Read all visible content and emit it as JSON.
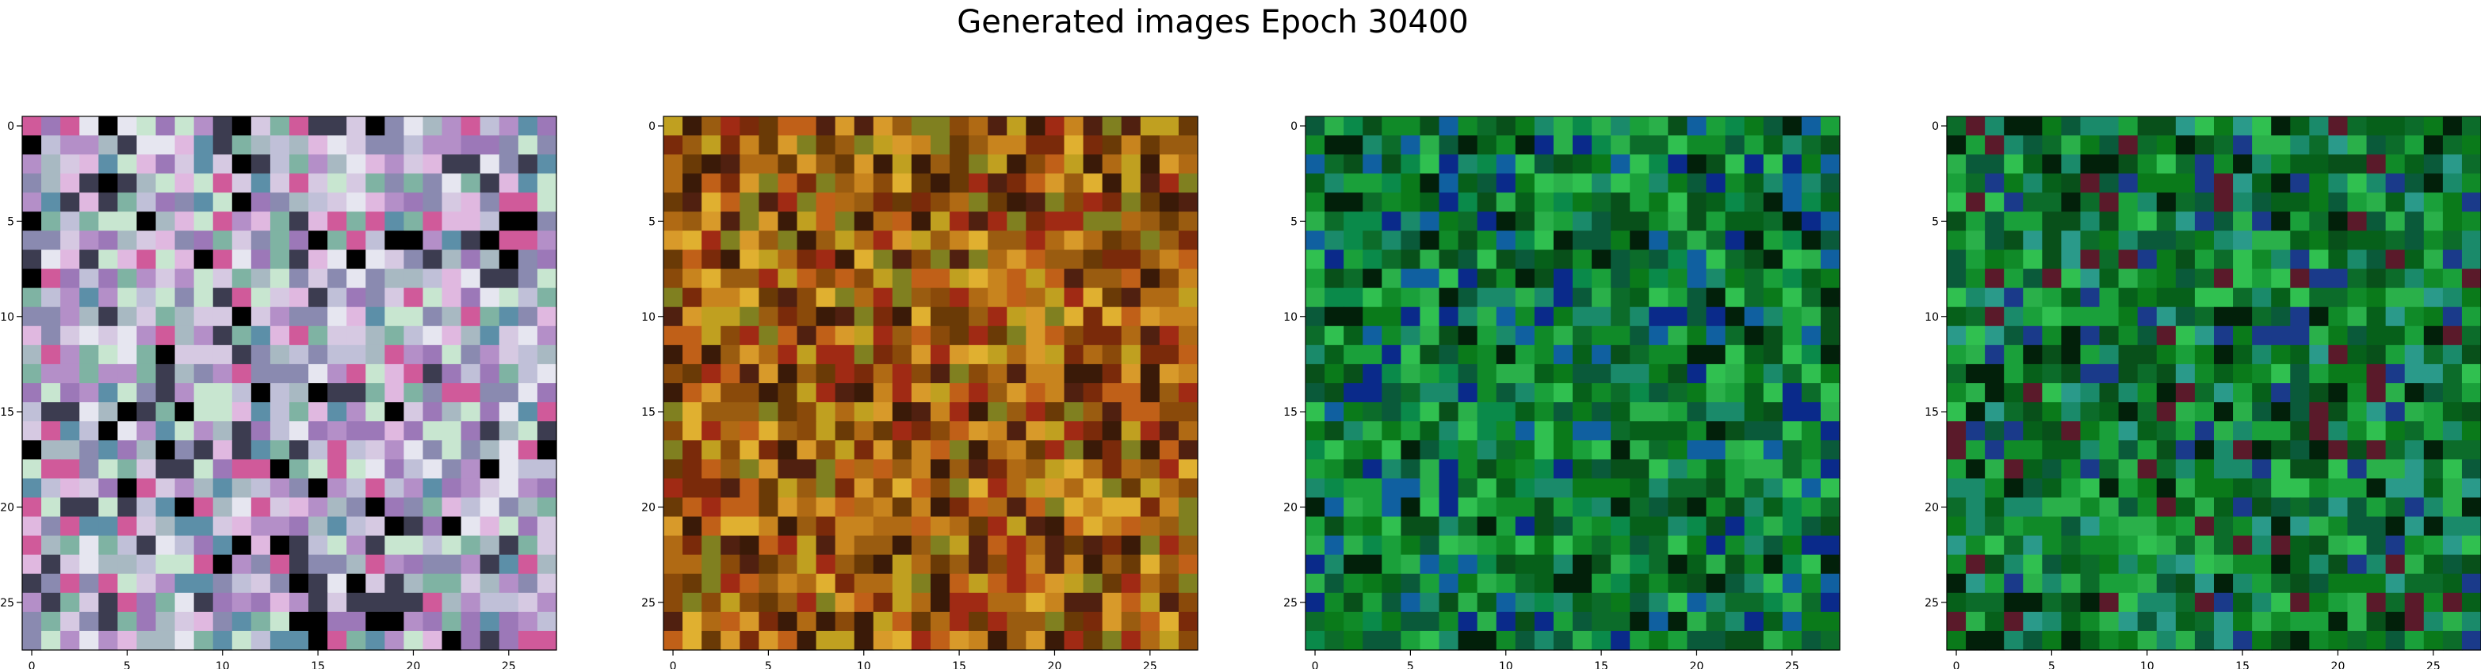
{
  "figure": {
    "title": "Generated images Epoch 30400"
  },
  "chart_data": [
    {
      "type": "heatmap",
      "colormap": "rgb-noise",
      "palette": [
        "#d6c9e2",
        "#a8b9c2",
        "#9c78b8",
        "#c8e6d0",
        "#e6e6f0",
        "#7fb3a3",
        "#b48fc8",
        "#5c8fa8",
        "#e0b8e0",
        "#3c3c50",
        "#d05a9a",
        "#000000",
        "#c0c0d8",
        "#8a8ab0"
      ],
      "grid_size": [
        28,
        28
      ],
      "xlim": [
        -0.5,
        27.5
      ],
      "ylim": [
        27.5,
        -0.5
      ],
      "xticks": [
        0,
        5,
        10,
        15,
        20,
        25
      ],
      "yticks": [
        0,
        5,
        10,
        15,
        20,
        25
      ],
      "xtick_labels": [
        "0",
        "5",
        "10",
        "15",
        "20",
        "25"
      ],
      "ytick_labels": [
        "0",
        "5",
        "10",
        "15",
        "20",
        "25"
      ]
    },
    {
      "type": "heatmap",
      "colormap": "rgb-noise",
      "palette": [
        "#8a4a0a",
        "#b06a14",
        "#c8841e",
        "#6a3a06",
        "#9a5c10",
        "#d89a2a",
        "#7a2a0a",
        "#a02a14",
        "#c0a020",
        "#502010",
        "#e0b030",
        "#3a1a08",
        "#808020",
        "#c06018"
      ],
      "grid_size": [
        28,
        28
      ],
      "xlim": [
        -0.5,
        27.5
      ],
      "ylim": [
        27.5,
        -0.5
      ],
      "xticks": [
        0,
        5,
        10,
        15,
        20,
        25
      ],
      "yticks": [
        0,
        5,
        10,
        15,
        20,
        25
      ],
      "xtick_labels": [
        "0",
        "5",
        "10",
        "15",
        "20",
        "25"
      ],
      "ytick_labels": [
        "0",
        "5",
        "10",
        "15",
        "20",
        "25"
      ]
    },
    {
      "type": "heatmap",
      "colormap": "rgb-noise",
      "palette": [
        "#0a7a1a",
        "#108a28",
        "#06601a",
        "#1aa03a",
        "#0c6c2a",
        "#2ab04a",
        "#0a5a3a",
        "#1a8a6a",
        "#0a2a8a",
        "#08501a",
        "#1060a0",
        "#02200a",
        "#30c050",
        "#0a8a4a"
      ],
      "grid_size": [
        28,
        28
      ],
      "xlim": [
        -0.5,
        27.5
      ],
      "ylim": [
        27.5,
        -0.5
      ],
      "xticks": [
        0,
        5,
        10,
        15,
        20,
        25
      ],
      "yticks": [
        0,
        5,
        10,
        15,
        20,
        25
      ],
      "xtick_labels": [
        "0",
        "5",
        "10",
        "15",
        "20",
        "25"
      ],
      "ytick_labels": [
        "0",
        "5",
        "10",
        "15",
        "20",
        "25"
      ]
    },
    {
      "type": "heatmap",
      "colormap": "rgb-noise",
      "palette": [
        "#0a7a1a",
        "#108a28",
        "#06601a",
        "#1aa03a",
        "#0c6c2a",
        "#2ab04a",
        "#0a5a3a",
        "#1a8a6a",
        "#1a3a8a",
        "#08501a",
        "#2a9a8a",
        "#02200a",
        "#30c050",
        "#5a1a2a"
      ],
      "grid_size": [
        28,
        28
      ],
      "xlim": [
        -0.5,
        27.5
      ],
      "ylim": [
        27.5,
        -0.5
      ],
      "xticks": [
        0,
        5,
        10,
        15,
        20,
        25
      ],
      "yticks": [
        0,
        5,
        10,
        15,
        20,
        25
      ],
      "xtick_labels": [
        "0",
        "5",
        "10",
        "15",
        "20",
        "25"
      ],
      "ytick_labels": [
        "0",
        "5",
        "10",
        "15",
        "20",
        "25"
      ]
    }
  ]
}
